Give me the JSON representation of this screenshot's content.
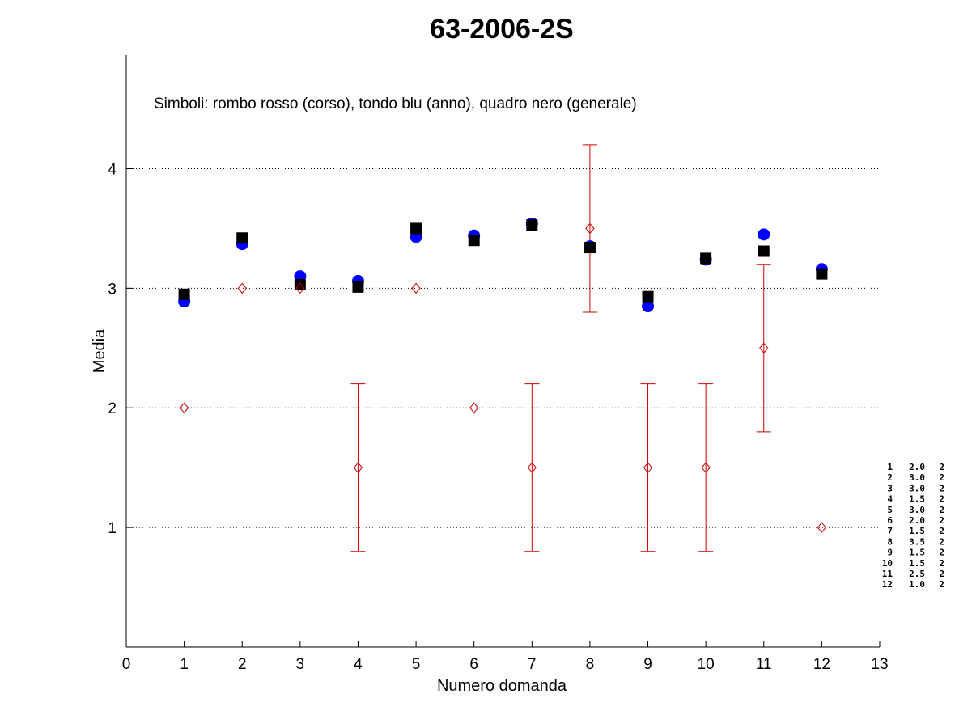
{
  "chart_data": {
    "type": "scatter",
    "title": "63-2006-2S",
    "xlabel": "Numero domanda",
    "ylabel": "Media",
    "xlim": [
      0,
      13
    ],
    "ylim": [
      0,
      4.95
    ],
    "xticks": [
      "0",
      "1",
      "2",
      "3",
      "4",
      "5",
      "6",
      "7",
      "8",
      "9",
      "10",
      "11",
      "12",
      "13"
    ],
    "yticks": [
      "1",
      "2",
      "3",
      "4"
    ],
    "ytick_values": [
      1,
      2,
      3,
      4
    ],
    "grid": "horizontal dotted",
    "annotation": "Simboli: rombo rosso (corso), tondo blu (anno), quadro nero (generale)",
    "x": [
      1,
      2,
      3,
      4,
      5,
      6,
      7,
      8,
      9,
      10,
      11,
      12
    ],
    "series": [
      {
        "marker": "diamond",
        "color": "#cc0000",
        "values": [
          2.0,
          3.0,
          3.0,
          1.5,
          3.0,
          2.0,
          1.5,
          3.5,
          1.5,
          1.5,
          2.5,
          1.0
        ],
        "error_low": [
          null,
          null,
          null,
          0.8,
          null,
          null,
          0.8,
          2.8,
          0.8,
          0.8,
          1.8,
          null
        ],
        "error_high": [
          null,
          null,
          null,
          2.2,
          null,
          null,
          2.2,
          4.2,
          2.2,
          2.2,
          3.2,
          null
        ]
      },
      {
        "marker": "circle",
        "color": "#0000ff",
        "values": [
          2.89,
          3.37,
          3.1,
          3.06,
          3.43,
          3.44,
          3.54,
          3.35,
          2.85,
          3.24,
          3.45,
          3.16
        ]
      },
      {
        "marker": "square",
        "color": "#000000",
        "values": [
          2.95,
          3.42,
          3.03,
          3.01,
          3.5,
          3.4,
          3.53,
          3.34,
          2.93,
          3.25,
          3.31,
          3.12
        ]
      }
    ],
    "side_table": [
      [
        "1",
        "2.0",
        "2"
      ],
      [
        "2",
        "3.0",
        "2"
      ],
      [
        "3",
        "3.0",
        "2"
      ],
      [
        "4",
        "1.5",
        "2"
      ],
      [
        "5",
        "3.0",
        "2"
      ],
      [
        "6",
        "2.0",
        "2"
      ],
      [
        "7",
        "1.5",
        "2"
      ],
      [
        "8",
        "3.5",
        "2"
      ],
      [
        "9",
        "1.5",
        "2"
      ],
      [
        "10",
        "1.5",
        "2"
      ],
      [
        "11",
        "2.5",
        "2"
      ],
      [
        "12",
        "1.0",
        "2"
      ]
    ]
  }
}
